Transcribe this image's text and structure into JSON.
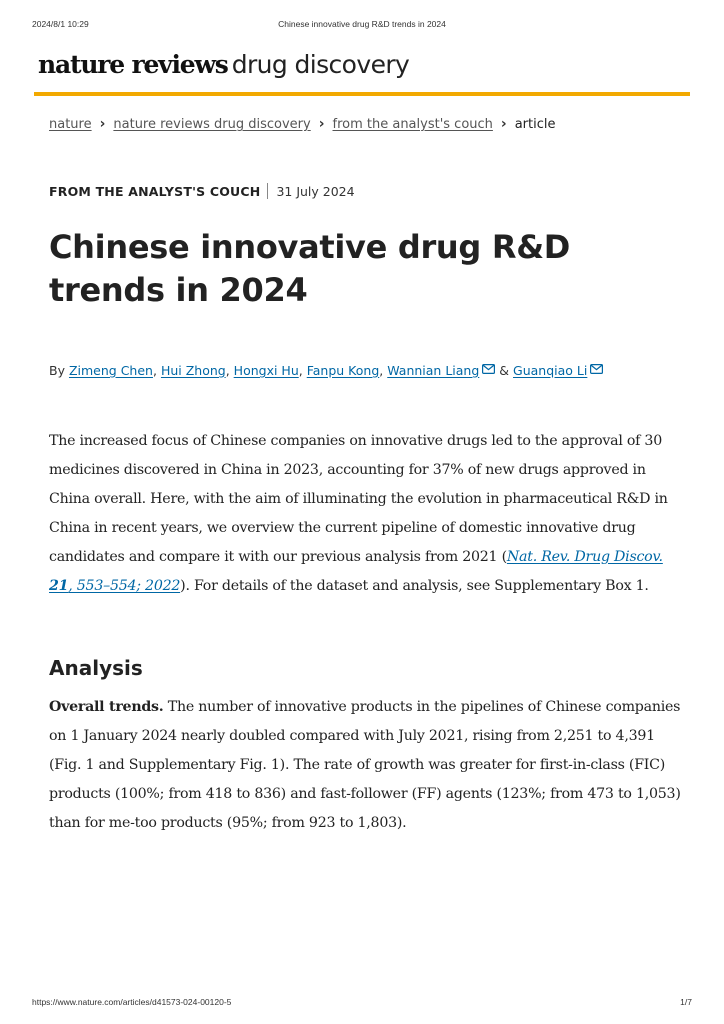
{
  "print_header": {
    "datetime": "2024/8/1 10:29",
    "page_title": "Chinese innovative drug R&D trends in 2024"
  },
  "print_footer": {
    "url": "https://www.nature.com/articles/d41573-024-00120-5",
    "page_number": "1/7"
  },
  "brand": {
    "bold": "nature reviews",
    "light": "drug discovery",
    "accent_color": "#f2a900"
  },
  "breadcrumb": [
    {
      "label": "nature",
      "link": true
    },
    {
      "label": "nature reviews drug discovery",
      "link": true
    },
    {
      "label": "from the analyst's couch",
      "link": true
    },
    {
      "label": "article",
      "link": false
    }
  ],
  "breadcrumb_separator": "›",
  "article": {
    "type": "FROM THE ANALYST'S COUCH",
    "date": "31 July 2024",
    "title": "Chinese innovative drug R&D trends in 2024",
    "by_label": "By",
    "authors": [
      "Zimeng Chen",
      "Hui Zhong",
      "Hongxi Hu",
      "Fanpu Kong",
      "Wannian Liang",
      "Guanqiao Li"
    ],
    "author_separator": ",",
    "and_label": "&",
    "abstract": {
      "before": "The increased focus of Chinese companies on innovative drugs led to the approval of 30 medicines discovered in China in 2023, accounting for 37% of new drugs approved in China overall. Here, with the aim of illuminating the evolution in pharmaceutical R&D in China in recent years, we overview the current pipeline of domestic innovative drug candidates and compare it with our previous analysis from 2021 (",
      "open_paren_note": "",
      "ref_journal": "Nat. Rev. Drug Discov.",
      "ref_volume": "21",
      "ref_pages": ", 553–554; 2022",
      "after": "). For details of the dataset and analysis, see Supplementary Box 1."
    },
    "section_heading": "Analysis",
    "overall_trends_label": "Overall trends.",
    "overall_trends_text": "The number of innovative products in the pipelines of Chinese companies on 1 January 2024 nearly doubled compared with July 2021, rising from 2,251 to 4,391 (Fig. 1 and Supplementary Fig. 1). The rate of growth was greater for first-in-class (FIC) products (100%; from 418 to 836) and fast-follower (FF) agents (123%; from 473 to 1,053) than for me-too products (95%; from 923 to 1,803)."
  },
  "colors": {
    "link": "#0067a5",
    "text": "#222222"
  }
}
